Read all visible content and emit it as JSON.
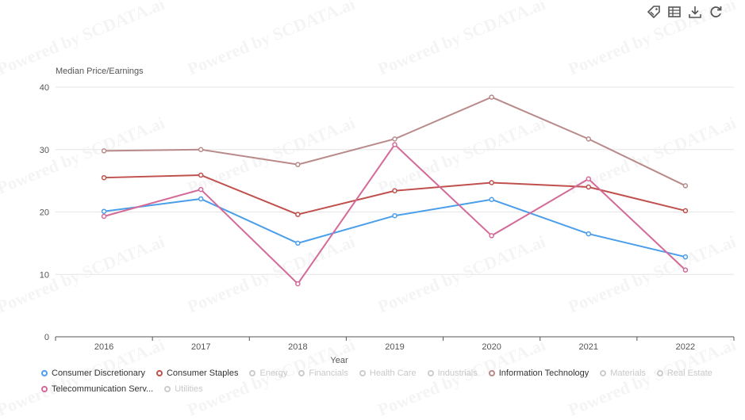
{
  "watermark_text": "Powered by SCDATA.ai",
  "toolbar": {
    "icons": [
      "tag-icon",
      "data-view-icon",
      "download-icon",
      "refresh-icon"
    ]
  },
  "chart_data": {
    "type": "line",
    "ylabel": "Median Price/Earnings",
    "xlabel": "Year",
    "ylim": [
      0,
      40
    ],
    "yticks": [
      0,
      10,
      20,
      30,
      40
    ],
    "categories": [
      "2016",
      "2017",
      "2018",
      "2019",
      "2020",
      "2021",
      "2022"
    ],
    "grid": "horizontal",
    "legend_position": "bottom",
    "series": [
      {
        "name": "Consumer Discretionary",
        "color": "#4a9eea",
        "values": [
          20.1,
          22.1,
          15.0,
          19.4,
          22.0,
          16.5,
          12.8
        ]
      },
      {
        "name": "Consumer Staples",
        "color": "#c0504d",
        "values": [
          25.5,
          25.9,
          19.6,
          23.4,
          24.7,
          24.0,
          20.2
        ]
      },
      {
        "name": "Information Technology",
        "color": "#b98a8a",
        "values": [
          29.8,
          30.0,
          27.6,
          31.7,
          38.4,
          31.7,
          24.2
        ]
      },
      {
        "name": "Telecommunication Serv...",
        "color": "#d36a98",
        "values": [
          19.3,
          23.6,
          8.5,
          30.8,
          16.2,
          25.3,
          10.7
        ]
      }
    ],
    "legend": {
      "row1": [
        {
          "label": "Consumer Discretionary",
          "active": true,
          "color": "#4a9eea"
        },
        {
          "label": "Consumer Staples",
          "active": true,
          "color": "#c0504d"
        },
        {
          "label": "Energy",
          "active": false,
          "color": "#cccccc"
        },
        {
          "label": "Financials",
          "active": false,
          "color": "#cccccc"
        },
        {
          "label": "Health Care",
          "active": false,
          "color": "#cccccc"
        },
        {
          "label": "Industrials",
          "active": false,
          "color": "#cccccc"
        },
        {
          "label": "Information Technology",
          "active": true,
          "color": "#b98a8a"
        },
        {
          "label": "Materials",
          "active": false,
          "color": "#cccccc"
        },
        {
          "label": "Real Estate",
          "active": false,
          "color": "#cccccc"
        }
      ],
      "row2": [
        {
          "label": "Telecommunication Serv...",
          "active": true,
          "color": "#d36a98"
        },
        {
          "label": "Utilities",
          "active": false,
          "color": "#cccccc"
        }
      ]
    }
  }
}
